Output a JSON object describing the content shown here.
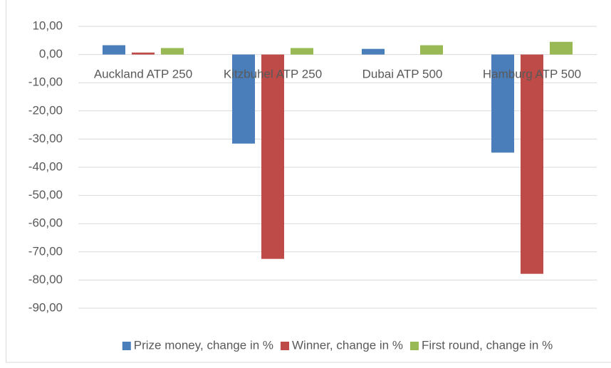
{
  "chart_data": {
    "type": "bar",
    "categories": [
      "Auckland ATP 250",
      "Kitzbuhel ATP 250",
      "Dubai ATP 500",
      "Hamburg ATP 500"
    ],
    "series": [
      {
        "name": "Prize money, change in %",
        "color": "#4a7ebb",
        "values": [
          3.3,
          -31.6,
          2.0,
          -34.8
        ]
      },
      {
        "name": "Winner, change in %",
        "color": "#be4b48",
        "values": [
          0.7,
          -72.5,
          0,
          -77.8
        ]
      },
      {
        "name": "First round, change in %",
        "color": "#98b954",
        "values": [
          2.3,
          2.3,
          3.3,
          4.5
        ]
      }
    ],
    "ylim": [
      -90,
      10
    ],
    "yticks": [
      {
        "value": 10,
        "label": "10,00"
      },
      {
        "value": 0,
        "label": "0,00"
      },
      {
        "value": -10,
        "label": "-10,00"
      },
      {
        "value": -20,
        "label": "-20,00"
      },
      {
        "value": -30,
        "label": "-30,00"
      },
      {
        "value": -40,
        "label": "-40,00"
      },
      {
        "value": -50,
        "label": "-50,00"
      },
      {
        "value": -60,
        "label": "-60,00"
      },
      {
        "value": -70,
        "label": "-70,00"
      },
      {
        "value": -80,
        "label": "-80,00"
      },
      {
        "value": -90,
        "label": "-90,00"
      }
    ],
    "grid": true,
    "legend": "bottom"
  }
}
